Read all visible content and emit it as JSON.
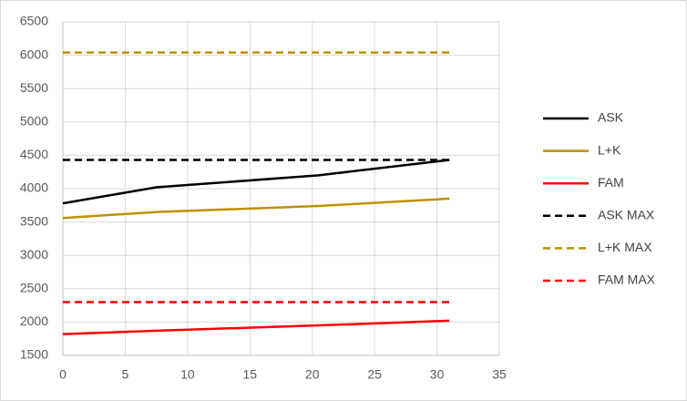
{
  "chart_data": {
    "type": "line",
    "x": [
      0,
      7.5,
      20.5,
      31
    ],
    "series": [
      {
        "name": "ASK",
        "color": "#000000",
        "dashed": false,
        "values": [
          3780,
          4020,
          4200,
          4430
        ]
      },
      {
        "name": "L+K",
        "color": "#bf9000",
        "dashed": false,
        "values": [
          3560,
          3650,
          3740,
          3850
        ]
      },
      {
        "name": "FAM",
        "color": "#ff0000",
        "dashed": false,
        "values": [
          1820,
          1870,
          1950,
          2020
        ]
      },
      {
        "name": "ASK MAX",
        "color": "#000000",
        "dashed": true,
        "values": [
          4430,
          4430,
          4430,
          4430
        ]
      },
      {
        "name": "L+K MAX",
        "color": "#bf9000",
        "dashed": true,
        "values": [
          6040,
          6040,
          6040,
          6040
        ]
      },
      {
        "name": "FAM MAX",
        "color": "#ff0000",
        "dashed": true,
        "values": [
          2300,
          2300,
          2300,
          2300
        ]
      }
    ],
    "xlim": [
      0,
      35
    ],
    "xticks": [
      0,
      5,
      10,
      15,
      20,
      25,
      30,
      35
    ],
    "ylim": [
      1500,
      6500
    ],
    "yticks": [
      1500,
      2000,
      2500,
      3000,
      3500,
      4000,
      4500,
      5000,
      5500,
      6000,
      6500
    ],
    "grid": true,
    "legend": "right"
  }
}
